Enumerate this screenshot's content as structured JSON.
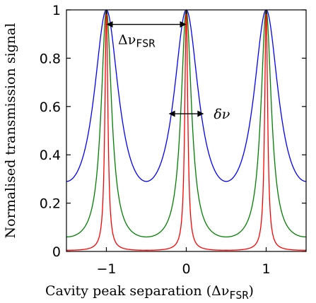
{
  "chart_data": {
    "type": "line",
    "title": "",
    "xlabel_main": "Cavity peak separation (Δν",
    "xlabel_sub": "FSR",
    "xlabel_end": ")",
    "ylabel": "Normalised transmission signal",
    "xlim": [
      -1.5,
      1.5
    ],
    "ylim": [
      0,
      1
    ],
    "x_ticks": [
      -1,
      0,
      1
    ],
    "x_tick_labels": [
      "−1",
      "0",
      "1"
    ],
    "y_ticks": [
      0,
      0.2,
      0.4,
      0.6,
      0.8,
      1
    ],
    "y_tick_labels": [
      "0",
      "0.2",
      "0.4",
      "0.6",
      "0.8",
      "1"
    ],
    "grid": false,
    "legend": "none",
    "series": [
      {
        "color": "#0000ff",
        "peak_positions": [
          -1,
          0,
          1
        ],
        "peak_value": 1,
        "min_value": 0.29
      },
      {
        "color": "#008000",
        "peak_positions": [
          -1,
          0,
          1
        ],
        "peak_value": 1,
        "min_value": 0.06
      },
      {
        "color": "#ff0000",
        "peak_positions": [
          -1,
          0,
          1
        ],
        "peak_value": 1,
        "min_value": 0.005
      }
    ],
    "annotations": [
      {
        "id": "fsr",
        "text_main": "Δν",
        "text_sub": "FSR",
        "type": "double-arrow",
        "x_from": -1,
        "x_to": 0,
        "y": 0.94
      },
      {
        "id": "linewidth",
        "text_main": "δν",
        "type": "double-arrow",
        "x_from": -0.22,
        "x_to": 0.22,
        "y": 0.57
      }
    ]
  }
}
